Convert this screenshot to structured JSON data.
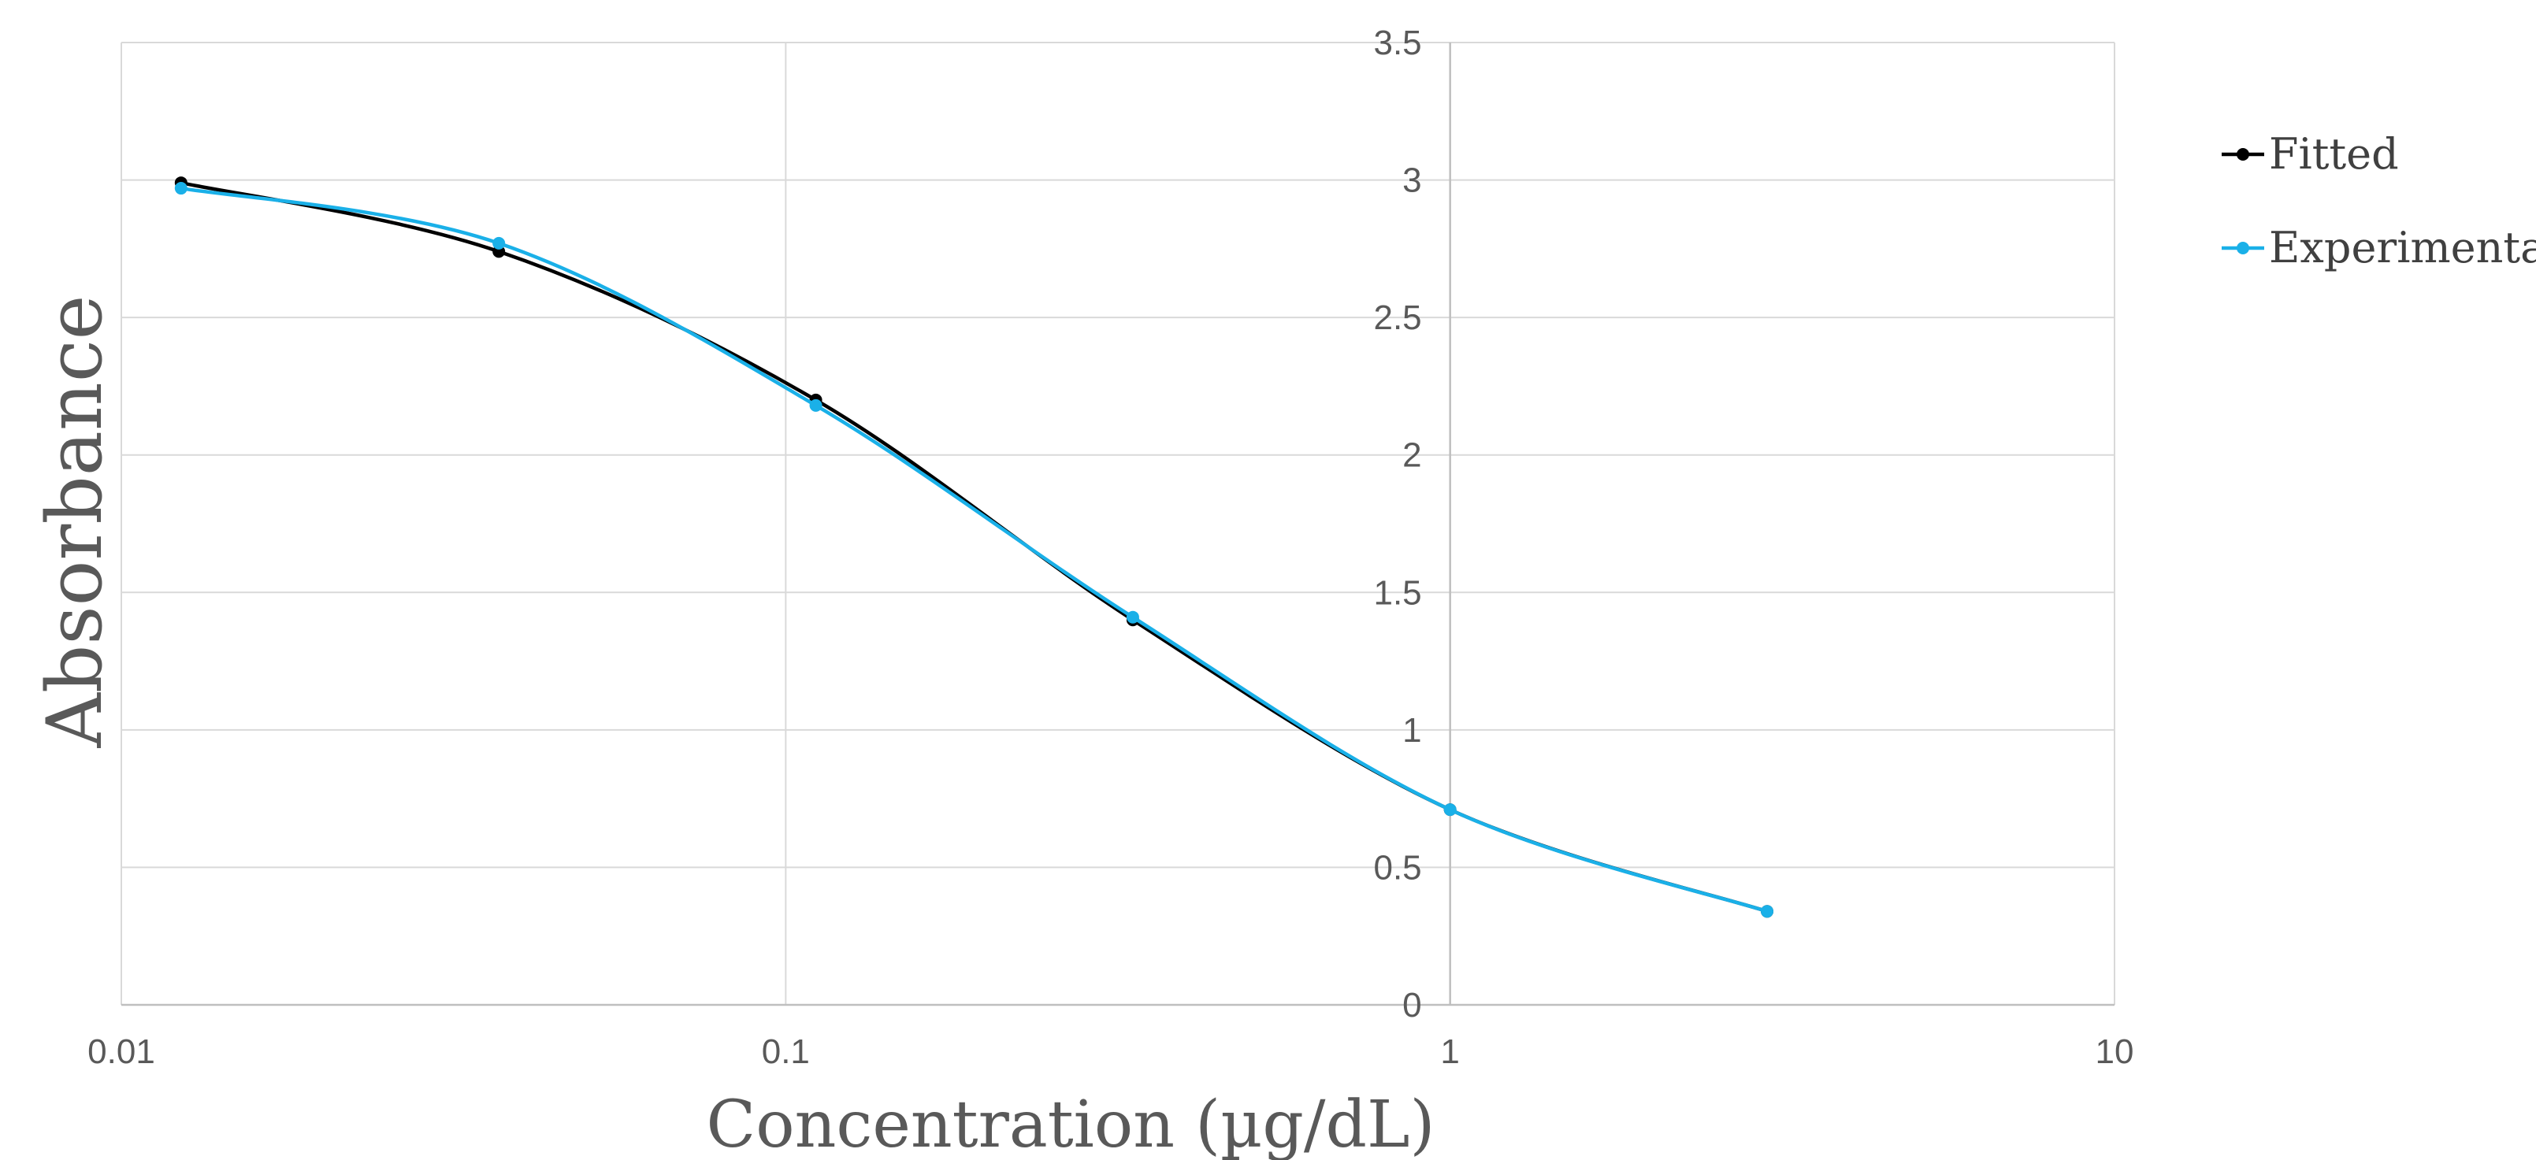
{
  "chart_data": {
    "type": "scatter",
    "subtype": "smooth lines with markers",
    "title": "",
    "xlabel": "Concentration (µg/dL)",
    "ylabel": "Absorbance",
    "x_scale": "log10",
    "xlim": [
      0.01,
      10
    ],
    "ylim": [
      0,
      3.5
    ],
    "x_ticks": [
      "0.01",
      "0.1",
      "1",
      "10"
    ],
    "y_ticks": [
      "0",
      "0.5",
      "1",
      "1.5",
      "2",
      "2.5",
      "3",
      "3.5"
    ],
    "y_axis_crosses_at_x": 1,
    "grid": true,
    "legend_position": "right",
    "series": [
      {
        "name": "Fitted",
        "color": "#000000",
        "x": [
          0.0123,
          0.037,
          0.111,
          0.333,
          1.0,
          3.0
        ],
        "y": [
          2.99,
          2.74,
          2.2,
          1.4,
          0.71,
          0.34
        ]
      },
      {
        "name": "Experimental",
        "color": "#1ab0e8",
        "x": [
          0.0123,
          0.037,
          0.111,
          0.333,
          1.0,
          3.0
        ],
        "y": [
          2.97,
          2.77,
          2.18,
          1.41,
          0.71,
          0.34
        ]
      }
    ]
  }
}
